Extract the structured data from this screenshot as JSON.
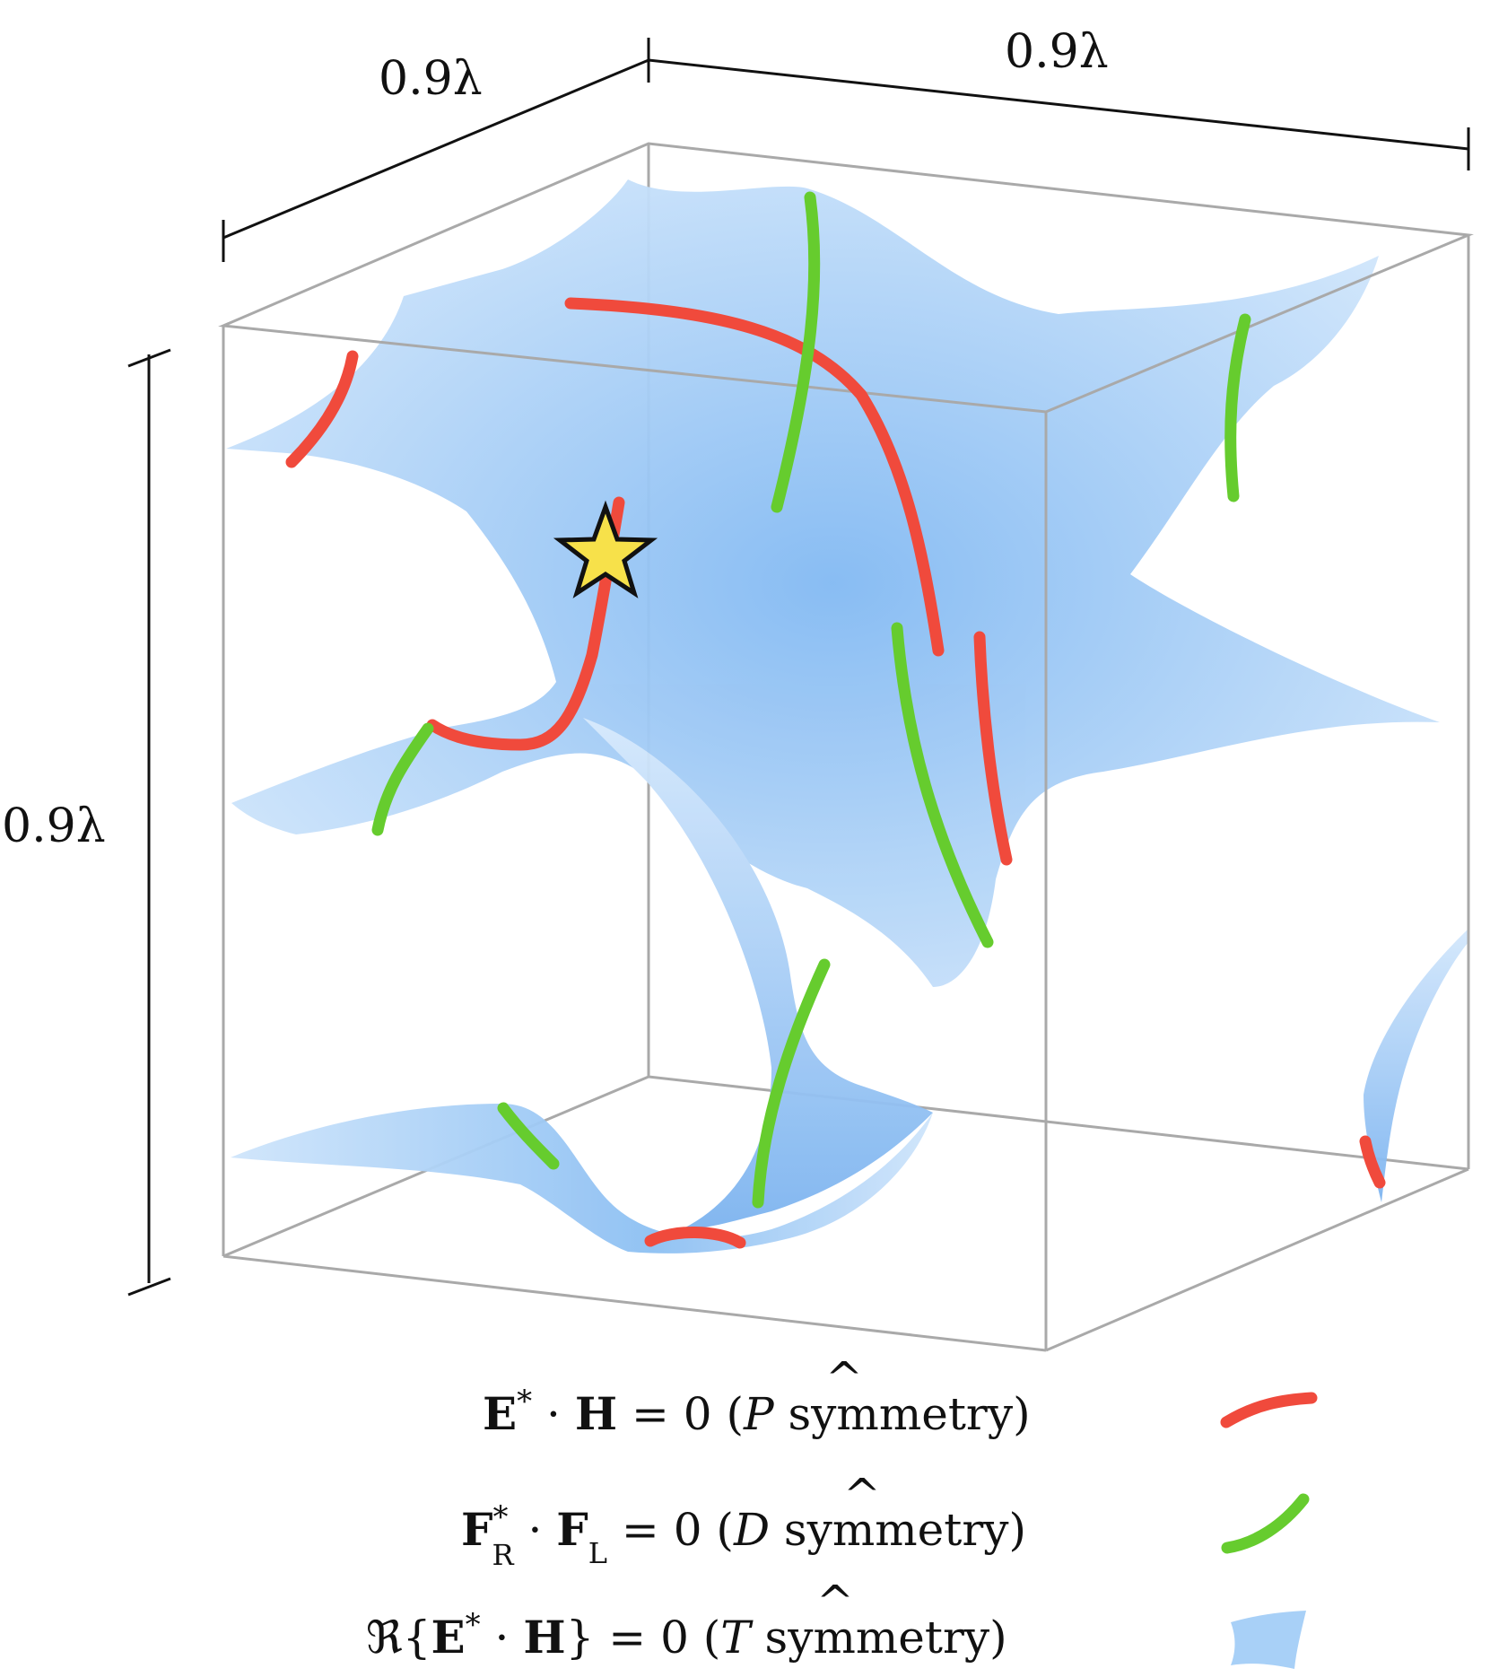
{
  "dimensions": {
    "depth_label": "0.9λ",
    "width_label": "0.9λ",
    "height_label": "0.9λ"
  },
  "legend": {
    "p_line": {
      "eq_E": "E",
      "eq_star": "*",
      "eq_dot": " · ",
      "eq_H": "H",
      "eq_rest": " = 0  (",
      "sym": "P",
      "sym_hat": "^",
      "tail": " symmetry)"
    },
    "d_line": {
      "eq_F1": "F",
      "eq_sup": "*",
      "eq_sub1": "R",
      "eq_dot": " · ",
      "eq_F2": "F",
      "eq_sub2": "L",
      "eq_rest": " = 0  (",
      "sym": "D",
      "sym_hat": "^",
      "tail": " symmetry)"
    },
    "t_line": {
      "re": "ℜ{",
      "eq_E": "E",
      "eq_star": "*",
      "eq_dot": " · ",
      "eq_H": "H",
      "eq_close": "}",
      "eq_rest": " = 0  (",
      "sym": "T",
      "sym_hat": "^",
      "tail": " symmetry)"
    }
  },
  "colors": {
    "p_curve": "#f04a3c",
    "d_curve": "#66cc2e",
    "t_surface": "#a8d0f7",
    "t_surface_dark": "#6eaaf0",
    "box_edge": "#a9a9a9",
    "star_fill": "#f7e14a"
  },
  "icons": {
    "star": "star-icon"
  }
}
